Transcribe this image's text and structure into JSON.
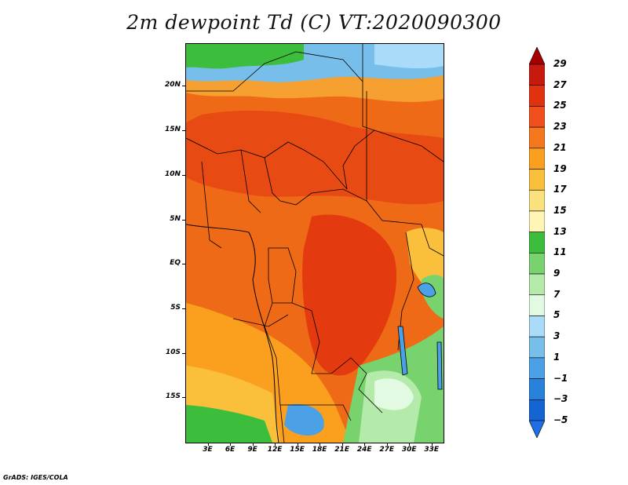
{
  "title": "2m dewpoint Td (C) VT:2020090300",
  "credit": "GrADS: IGES/COLA",
  "map": {
    "lat_ticks": [
      {
        "label": "20N",
        "lat": 20
      },
      {
        "label": "15N",
        "lat": 15
      },
      {
        "label": "10N",
        "lat": 10
      },
      {
        "label": "5N",
        "lat": 5
      },
      {
        "label": "EQ",
        "lat": 0
      },
      {
        "label": "5S",
        "lat": -5
      },
      {
        "label": "10S",
        "lat": -10
      },
      {
        "label": "15S",
        "lat": -15
      }
    ],
    "lon_ticks": [
      {
        "label": "3E",
        "lon": 3
      },
      {
        "label": "6E",
        "lon": 6
      },
      {
        "label": "9E",
        "lon": 9
      },
      {
        "label": "12E",
        "lon": 12
      },
      {
        "label": "15E",
        "lon": 15
      },
      {
        "label": "18E",
        "lon": 18
      },
      {
        "label": "21E",
        "lon": 21
      },
      {
        "label": "24E",
        "lon": 24
      },
      {
        "label": "27E",
        "lon": 27
      },
      {
        "label": "30E",
        "lon": 30
      },
      {
        "label": "33E",
        "lon": 33
      }
    ],
    "lon_range": [
      0,
      34.5
    ],
    "lat_range": [
      -20,
      24.8
    ]
  },
  "colorbar": {
    "levels": [
      {
        "label": "29",
        "color": "#a50000"
      },
      {
        "label": "27",
        "color": "#c8190f"
      },
      {
        "label": "25",
        "color": "#e1320f"
      },
      {
        "label": "23",
        "color": "#f0501e"
      },
      {
        "label": "21",
        "color": "#f5781e"
      },
      {
        "label": "19",
        "color": "#faa01e"
      },
      {
        "label": "17",
        "color": "#fac03c"
      },
      {
        "label": "15",
        "color": "#fae17d"
      },
      {
        "label": "13",
        "color": "#fff5b4"
      },
      {
        "label": "11",
        "color": "#3cbe3c"
      },
      {
        "label": "9",
        "color": "#78d26e"
      },
      {
        "label": "7",
        "color": "#b4ebaa"
      },
      {
        "label": "5",
        "color": "#e1fae1"
      },
      {
        "label": "3",
        "color": "#aadcfa"
      },
      {
        "label": "1",
        "color": "#78beeb"
      },
      {
        "label": "−1",
        "color": "#4ba0e6"
      },
      {
        "label": "−3",
        "color": "#2882dc"
      },
      {
        "label": "−5",
        "color": "#1464d2"
      }
    ],
    "bottom_color": "#1e6ee6"
  }
}
